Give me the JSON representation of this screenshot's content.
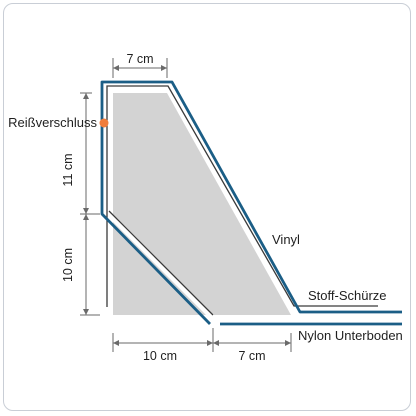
{
  "dimensions": {
    "top_width": "7 cm",
    "upper_height": "11 cm",
    "lower_height": "10 cm",
    "bottom_left_width": "10 cm",
    "bottom_right_width": "7 cm"
  },
  "labels": {
    "zipper": "Reißverschluss",
    "vinyl": "Vinyl",
    "fabric_skirt": "Stoff-Schürze",
    "nylon_floor": "Nylon Unterboden"
  },
  "colors": {
    "vinyl_line": "#1b5e86",
    "inner_line": "#3a3a3a",
    "fill": "#d3d3d3",
    "zipper_dot": "#f07d3c",
    "dimension_line": "#6a6a6a"
  }
}
